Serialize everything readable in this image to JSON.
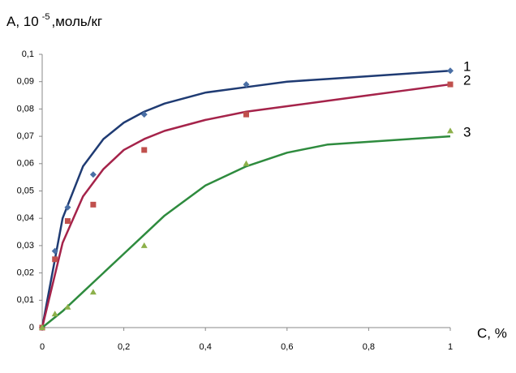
{
  "chart_data": {
    "type": "scatter",
    "y_label": {
      "main": "A, 10",
      "sup": "-5",
      "unit": ",моль/кг"
    },
    "x_label": "C, %",
    "xlim": [
      0,
      1
    ],
    "xticks": [
      0,
      {
        "value": 0.2,
        "label": "0,2"
      },
      {
        "value": 0.4,
        "label": "0,4"
      },
      {
        "value": 0.6,
        "label": "0,6"
      },
      {
        "value": 0.8,
        "label": "0,8"
      },
      1
    ],
    "ylim": [
      0,
      0.1
    ],
    "yticks": [
      0,
      {
        "value": 0.01,
        "label": "0,01"
      },
      {
        "value": 0.02,
        "label": "0,02"
      },
      {
        "value": 0.03,
        "label": "0,03"
      },
      {
        "value": 0.04,
        "label": "0,04"
      },
      {
        "value": 0.05,
        "label": "0,05"
      },
      {
        "value": 0.06,
        "label": "0,06"
      },
      {
        "value": 0.07,
        "label": "0,07"
      },
      {
        "value": 0.08,
        "label": "0,08"
      },
      {
        "value": 0.09,
        "label": "0,09"
      },
      {
        "value": 0.1,
        "label": "0,1"
      }
    ],
    "grid": false,
    "x": [
      0,
      0.03125,
      0.0625,
      0.125,
      0.25,
      0.5,
      1
    ],
    "fit_x": [
      0,
      0.05,
      0.1,
      0.15,
      0.2,
      0.25,
      0.3,
      0.4,
      0.5,
      0.6,
      0.7,
      0.8,
      0.9,
      1
    ],
    "series": [
      {
        "name": "1",
        "color": "#1f3b73",
        "marker_color": "#4a6fa5",
        "marker": "diamond",
        "values": [
          0,
          0.028,
          0.044,
          0.056,
          0.078,
          0.089,
          0.094
        ],
        "fit": [
          0,
          0.04,
          0.059,
          0.069,
          0.075,
          0.079,
          0.082,
          0.086,
          0.088,
          0.09,
          0.091,
          0.092,
          0.093,
          0.094
        ]
      },
      {
        "name": "2",
        "color": "#a5234a",
        "marker_color": "#c0504d",
        "marker": "square",
        "values": [
          0,
          0.025,
          0.039,
          0.045,
          0.065,
          0.078,
          0.089
        ],
        "fit": [
          0,
          0.031,
          0.048,
          0.058,
          0.065,
          0.069,
          0.072,
          0.076,
          0.079,
          0.081,
          0.083,
          0.085,
          0.087,
          0.089
        ]
      },
      {
        "name": "3",
        "color": "#2e8b3e",
        "marker_color": "#8db04a",
        "marker": "triangle",
        "values": [
          0,
          0.005,
          0.0075,
          0.013,
          0.03,
          0.06,
          0.072
        ],
        "fit": [
          0,
          0.006,
          0.013,
          0.02,
          0.027,
          0.034,
          0.041,
          0.052,
          0.059,
          0.064,
          0.067,
          0.068,
          0.069,
          0.07
        ]
      }
    ]
  }
}
